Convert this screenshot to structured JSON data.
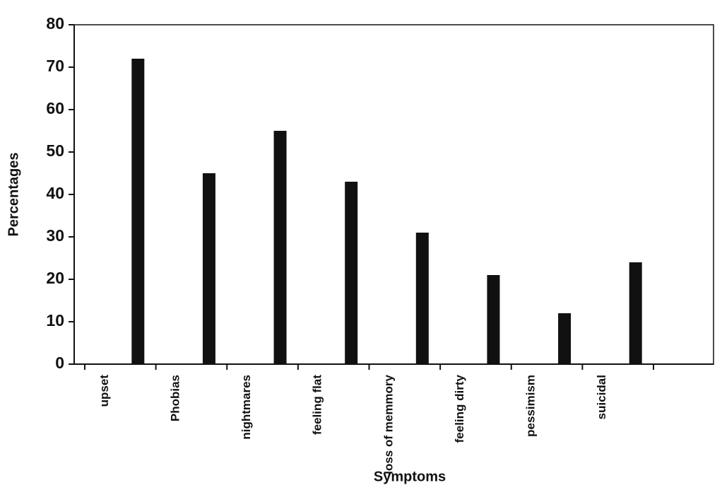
{
  "chart_data": {
    "type": "bar",
    "x_label": "Symptoms",
    "y_label": "Percentages",
    "categories": [
      "upset",
      "Phobias",
      "nightmares",
      "feeling flat",
      "loss of memmory",
      "feeling dirty",
      "pessimism",
      "suicidal"
    ],
    "values": [
      72,
      45,
      55,
      43,
      31,
      21,
      12,
      24
    ],
    "color": "#111111",
    "ylim": [
      0,
      80
    ],
    "yticks": [
      0,
      10,
      20,
      30,
      40,
      50,
      60,
      70,
      80
    ],
    "grid": false
  }
}
